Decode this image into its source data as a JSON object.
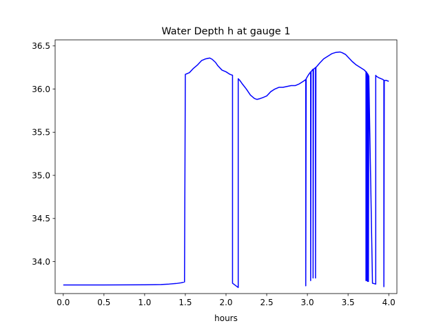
{
  "chart_data": {
    "type": "line",
    "title": "Water Depth h at gauge 1",
    "xlabel": "hours",
    "ylabel": "",
    "xlim": [
      -0.1,
      4.1
    ],
    "ylim": [
      33.63,
      36.57
    ],
    "grid": false,
    "x_ticks": [
      0.0,
      0.5,
      1.0,
      1.5,
      2.0,
      2.5,
      3.0,
      3.5,
      4.0
    ],
    "x_tick_labels": [
      "0.0",
      "0.5",
      "1.0",
      "1.5",
      "2.0",
      "2.5",
      "3.0",
      "3.5",
      "4.0"
    ],
    "y_ticks": [
      34.0,
      34.5,
      35.0,
      35.5,
      36.0,
      36.5
    ],
    "y_tick_labels": [
      "34.0",
      "34.5",
      "35.0",
      "35.5",
      "36.0",
      "36.5"
    ],
    "series": [
      {
        "color": "#0000ff",
        "x": [
          0.0,
          0.5,
          1.0,
          1.2,
          1.3,
          1.4,
          1.45,
          1.49,
          1.5,
          1.55,
          1.6,
          1.65,
          1.7,
          1.75,
          1.8,
          1.83,
          1.87,
          1.9,
          1.95,
          2.0,
          2.05,
          2.08,
          2.08,
          2.15,
          2.15,
          2.17,
          2.2,
          2.25,
          2.3,
          2.35,
          2.38,
          2.42,
          2.45,
          2.5,
          2.55,
          2.6,
          2.65,
          2.7,
          2.75,
          2.8,
          2.85,
          2.9,
          2.95,
          2.98,
          2.98,
          2.985,
          3.01,
          3.04,
          3.04,
          3.045,
          3.06,
          3.07,
          3.07,
          3.075,
          3.09,
          3.1,
          3.1,
          3.105,
          3.15,
          3.2,
          3.25,
          3.3,
          3.35,
          3.4,
          3.43,
          3.47,
          3.5,
          3.55,
          3.6,
          3.65,
          3.7,
          3.72,
          3.72,
          3.725,
          3.73,
          3.73,
          3.735,
          3.74,
          3.74,
          3.745,
          3.75,
          3.75,
          3.755,
          3.8,
          3.84,
          3.84,
          3.845,
          3.88,
          3.93,
          3.94,
          3.94,
          3.945,
          3.97,
          4.0
        ],
        "y": [
          33.73,
          33.73,
          33.732,
          33.735,
          33.74,
          33.748,
          33.755,
          33.765,
          36.17,
          36.19,
          36.24,
          36.28,
          36.33,
          36.35,
          36.36,
          36.345,
          36.31,
          36.27,
          36.22,
          36.2,
          36.17,
          36.16,
          33.75,
          33.7,
          36.12,
          36.1,
          36.06,
          36.0,
          35.93,
          35.89,
          35.88,
          35.89,
          35.9,
          35.92,
          35.97,
          36.0,
          36.02,
          36.02,
          36.03,
          36.04,
          36.04,
          36.06,
          36.09,
          36.11,
          33.72,
          36.12,
          36.16,
          36.2,
          33.78,
          36.2,
          36.22,
          36.23,
          33.81,
          36.23,
          36.24,
          36.25,
          33.81,
          36.25,
          36.3,
          36.35,
          36.38,
          36.41,
          36.425,
          36.43,
          36.42,
          36.4,
          36.37,
          36.32,
          36.28,
          36.25,
          36.22,
          36.2,
          33.78,
          36.2,
          36.19,
          33.78,
          36.18,
          36.18,
          33.77,
          36.17,
          36.16,
          33.77,
          36.15,
          33.75,
          33.74,
          36.16,
          36.15,
          36.13,
          36.11,
          36.1,
          33.71,
          36.1,
          36.1,
          36.09
        ]
      }
    ]
  }
}
